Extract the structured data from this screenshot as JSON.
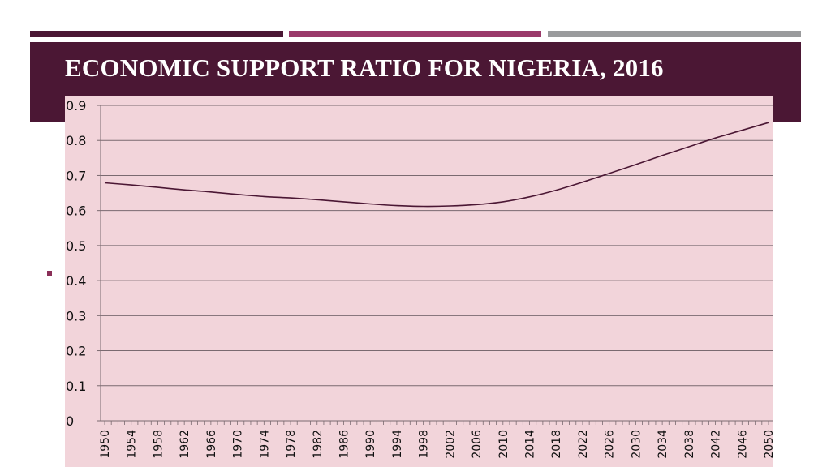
{
  "colors": {
    "bar1": "#4b1734",
    "bar2": "#9a3a6a",
    "bar3": "#9a9b9d",
    "title_band": "#4b1734",
    "title_text": "#ffffff",
    "plot_fill": "#f2d4da",
    "grid": "#7a6a70",
    "line": "#4b1734",
    "bullet": "#8a2f58"
  },
  "slide": {
    "title": "ECONOMIC SUPPORT RATIO FOR NIGERIA, 2016"
  },
  "chart_data": {
    "type": "line",
    "title": "",
    "xlabel": "",
    "ylabel": "",
    "ylim": [
      0,
      0.9
    ],
    "y_ticks": [
      "0",
      "0.1",
      "0.2",
      "0.3",
      "0.4",
      "0.5",
      "0.6",
      "0.7",
      "0.8",
      "0.9"
    ],
    "x_tick_labels": [
      "1950",
      "1954",
      "1958",
      "1962",
      "1966",
      "1970",
      "1974",
      "1978",
      "1982",
      "1986",
      "1990",
      "1994",
      "1998",
      "2002",
      "2006",
      "2010",
      "2014",
      "2018",
      "2022",
      "2026",
      "2030",
      "2034",
      "2038",
      "2042",
      "2046",
      "2050"
    ],
    "x": [
      1950,
      1954,
      1958,
      1962,
      1966,
      1970,
      1974,
      1978,
      1982,
      1986,
      1990,
      1994,
      1998,
      2002,
      2006,
      2010,
      2014,
      2018,
      2022,
      2026,
      2030,
      2034,
      2038,
      2042,
      2046,
      2050
    ],
    "values": [
      0.679,
      0.673,
      0.666,
      0.659,
      0.653,
      0.646,
      0.64,
      0.636,
      0.631,
      0.625,
      0.619,
      0.614,
      0.612,
      0.613,
      0.617,
      0.625,
      0.639,
      0.658,
      0.681,
      0.706,
      0.731,
      0.757,
      0.782,
      0.807,
      0.829,
      0.851
    ],
    "grid": true,
    "legend": "none"
  }
}
